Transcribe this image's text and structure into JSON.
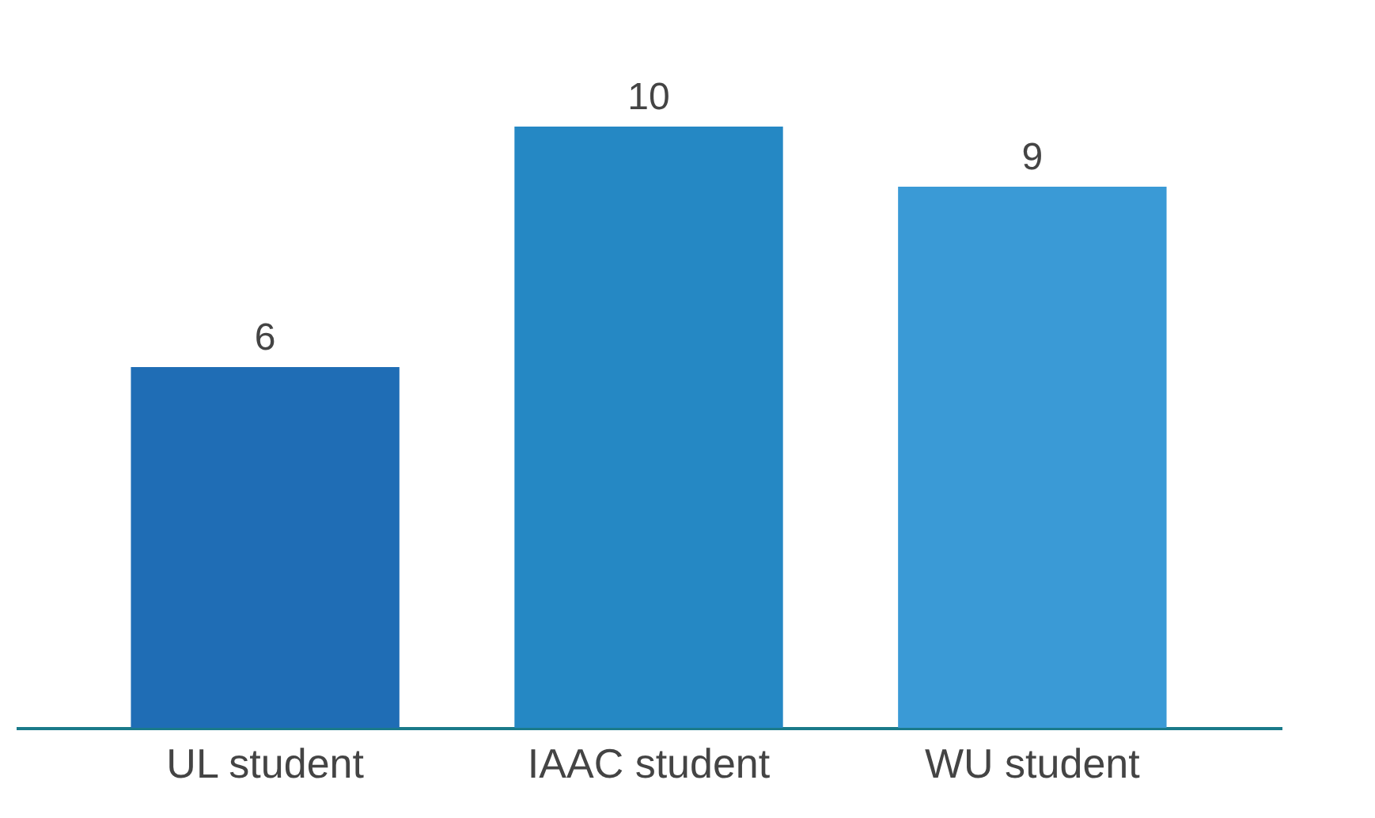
{
  "chart_data": {
    "type": "bar",
    "categories": [
      "UL student",
      "IAAC student",
      "WU student"
    ],
    "values": [
      6,
      10,
      9
    ],
    "colors": [
      "#1f6db5",
      "#2588c4",
      "#3a9ad6"
    ],
    "ylim": [
      0,
      10
    ],
    "data_labels": true,
    "grid": false,
    "tick_labels": "x"
  }
}
